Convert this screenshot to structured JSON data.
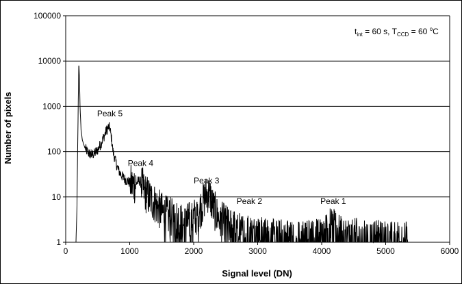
{
  "chart_data": {
    "type": "line",
    "title": "",
    "xlabel": "Signal level (DN)",
    "ylabel": "Number of pixels",
    "xlim": [
      0,
      6000
    ],
    "ylim": [
      1,
      100000
    ],
    "yscale": "log",
    "grid": "horizontal",
    "x_ticks": [
      "0",
      "1000",
      "2000",
      "3000",
      "4000",
      "5000",
      "6000"
    ],
    "y_ticks": [
      "1",
      "10",
      "100",
      "1000",
      "10000",
      "100000"
    ],
    "annotation": {
      "prefix": "t",
      "prefix_sub": "int",
      "mid": " = 60 s, T",
      "mid_sub": "CCD",
      "tail": " = 60 ",
      "tail_sup": "o",
      "unit": "C"
    },
    "peak_labels": [
      {
        "text": "Peak 5",
        "x": 690,
        "y": 600
      },
      {
        "text": "Peak 4",
        "x": 1170,
        "y": 48
      },
      {
        "text": "Peak 3",
        "x": 2200,
        "y": 20
      },
      {
        "text": "Peak 2",
        "x": 2870,
        "y": 7
      },
      {
        "text": "Peak 1",
        "x": 4180,
        "y": 7
      }
    ],
    "series": [
      {
        "values_note": "",
        "x": [
          160,
          175,
          190,
          205,
          215,
          225,
          240,
          260,
          300,
          350,
          400,
          450,
          500,
          550,
          600,
          640,
          670,
          690,
          710,
          740,
          780,
          820,
          870,
          920,
          980,
          1040,
          1100,
          1150,
          1180,
          1220,
          1270,
          1330,
          1400,
          1480,
          1560,
          1650,
          1750,
          1850,
          1950,
          2050,
          2120,
          2180,
          2220,
          2260,
          2300,
          2360,
          2420,
          2500,
          2600,
          2700,
          2800,
          2900,
          3000,
          3100,
          3300,
          3500,
          3700,
          3900,
          4050,
          4150,
          4250,
          4400,
          4600,
          4800,
          5000,
          5200,
          5350
        ],
        "y": [
          1,
          5,
          300,
          10000,
          4000,
          900,
          300,
          180,
          120,
          95,
          85,
          90,
          110,
          150,
          220,
          300,
          350,
          330,
          220,
          100,
          60,
          40,
          30,
          25,
          22,
          18,
          20,
          23,
          20,
          14,
          11,
          9,
          7,
          5,
          4,
          3.5,
          3,
          2.5,
          3,
          4,
          6,
          10,
          12,
          10,
          6,
          4,
          3,
          2.5,
          2,
          1.8,
          1.6,
          1.5,
          1.4,
          1.3,
          1.2,
          1.2,
          1.1,
          1.2,
          1.5,
          2.2,
          1.6,
          1.3,
          1.2,
          1.1,
          1.1,
          1.1,
          1.05
        ]
      }
    ]
  }
}
